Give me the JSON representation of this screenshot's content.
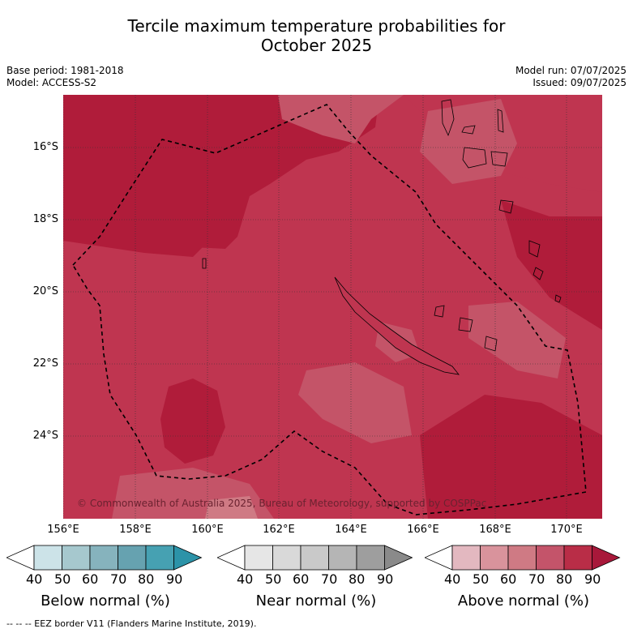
{
  "title_line1": "Tercile maximum temperature probabilities for",
  "title_line2": "October 2025",
  "base_period": "Base period: 1981-2018",
  "model": "Model: ACCESS-S2",
  "model_run": "Model run: 07/07/2025",
  "issued": "Issued: 09/07/2025",
  "copyright": "© Commonwealth of Australia 2025, Bureau of Meteorology, supported by COSPPac",
  "footer": "--  --  -- EEZ border V11 (Flanders Marine Institute, 2019).",
  "lat_labels": [
    "16°S",
    "18°S",
    "20°S",
    "22°S",
    "24°S"
  ],
  "lon_labels": [
    "156°E",
    "158°E",
    "160°E",
    "162°E",
    "164°E",
    "166°E",
    "168°E",
    "170°E"
  ],
  "colorbars": [
    {
      "label": "Below normal (%)",
      "ticks": [
        "40",
        "50",
        "60",
        "70",
        "80",
        "90"
      ],
      "colors": [
        "#ffffff",
        "#cce3e8",
        "#a6c8ce",
        "#86b3bd",
        "#66a2b0",
        "#46a1b2",
        "#2c93a8"
      ]
    },
    {
      "label": "Near normal (%)",
      "ticks": [
        "40",
        "50",
        "60",
        "70",
        "80",
        "90"
      ],
      "colors": [
        "#ffffff",
        "#e6e6e6",
        "#d9d9d9",
        "#c9c9c9",
        "#b5b5b5",
        "#9e9e9e",
        "#8a8a8a"
      ]
    },
    {
      "label": "Above normal (%)",
      "ticks": [
        "40",
        "50",
        "60",
        "70",
        "80",
        "90"
      ],
      "colors": [
        "#ffffff",
        "#e3b8c0",
        "#d9939c",
        "#cf7a84",
        "#c4546a",
        "#b92d47",
        "#a8183a"
      ]
    }
  ],
  "map_colors": {
    "above_90": "#b01c3a",
    "above_80": "#bf3550",
    "above_70": "#c45468",
    "above_60": "#cf7a84"
  }
}
